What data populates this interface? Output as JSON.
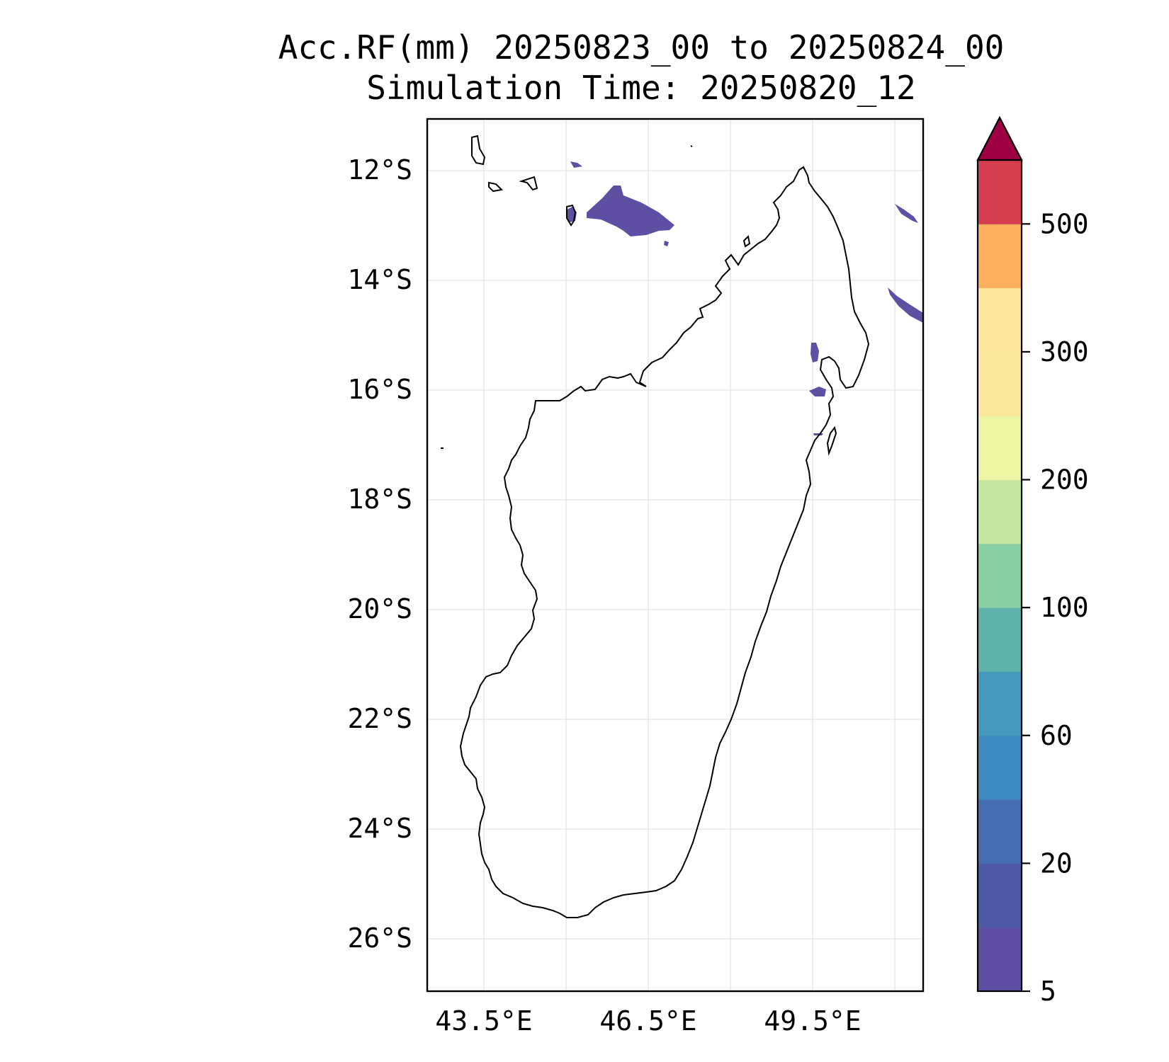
{
  "title": "Acc.RF(mm) 20250823_00 to 20250824_00",
  "subtitle": "Simulation Time: 20250820_12",
  "latitude_labels": [
    "12°S",
    "14°S",
    "16°S",
    "18°S",
    "20°S",
    "22°S",
    "24°S",
    "26°S"
  ],
  "longitude_labels": [
    "43.5°E",
    "46.5°E",
    "49.5°E"
  ],
  "colorbar": {
    "tick_labels": [
      "5",
      "20",
      "60",
      "100",
      "200",
      "300",
      "500"
    ],
    "colors": [
      "#5e4fa2",
      "#4f5aa7",
      "#466cb1",
      "#3d8bbf",
      "#4399b9",
      "#5fb3ab",
      "#88cfa4",
      "#c4e79f",
      "#eef6a6",
      "#fbe99b",
      "#fee8a0",
      "#fdb060",
      "#d53e4f"
    ],
    "extend_color": "#9e0142",
    "extend": "max"
  },
  "rain_color": "#5e4fa2"
}
